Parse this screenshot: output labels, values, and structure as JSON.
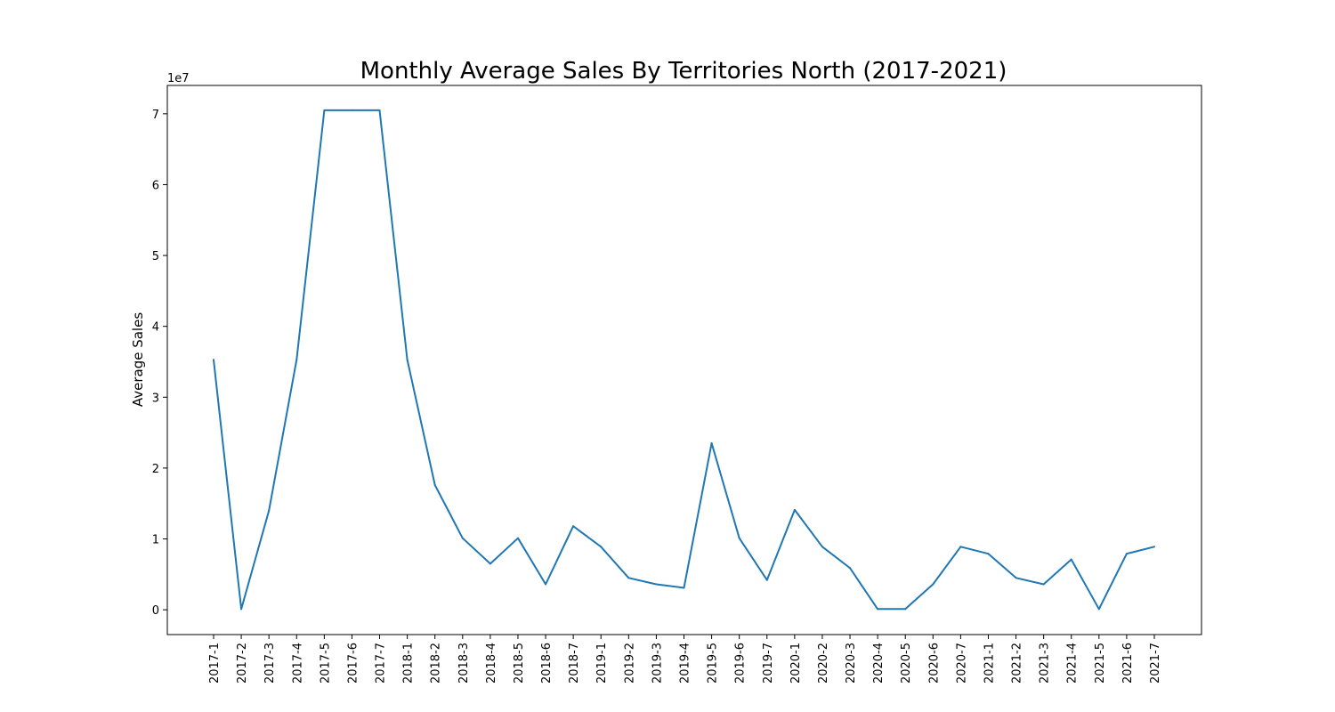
{
  "chart_data": {
    "type": "line",
    "title": "Monthly Average Sales By Territories North (2017-2021)",
    "xlabel": "",
    "ylabel": "Average Sales",
    "y_offset_label": "1e7",
    "y_scale": 10000000,
    "ylim": [
      -3500000,
      74000000
    ],
    "yticks": [
      0,
      10000000,
      20000000,
      30000000,
      40000000,
      50000000,
      60000000,
      70000000
    ],
    "ytick_labels": [
      "0",
      "1",
      "2",
      "3",
      "4",
      "5",
      "6",
      "7"
    ],
    "grid": false,
    "line_color": "#1f77b4",
    "categories": [
      "2017-1",
      "2017-2",
      "2017-3",
      "2017-4",
      "2017-5",
      "2017-6",
      "2017-7",
      "2018-1",
      "2018-2",
      "2018-3",
      "2018-4",
      "2018-5",
      "2018-6",
      "2018-7",
      "2019-1",
      "2019-2",
      "2019-3",
      "2019-4",
      "2019-5",
      "2019-6",
      "2019-7",
      "2020-1",
      "2020-2",
      "2020-3",
      "2020-4",
      "2020-5",
      "2020-6",
      "2020-7",
      "2021-1",
      "2021-2",
      "2021-3",
      "2021-4",
      "2021-5",
      "2021-6",
      "2021-7"
    ],
    "values": [
      35300000,
      100000,
      14000000,
      35300000,
      70500000,
      70500000,
      70500000,
      35300000,
      17600000,
      10100000,
      6500000,
      10100000,
      3600000,
      11800000,
      8900000,
      4500000,
      3600000,
      3100000,
      23500000,
      10100000,
      4200000,
      14100000,
      8900000,
      5900000,
      100000,
      100000,
      3600000,
      8900000,
      7900000,
      4500000,
      3600000,
      7100000,
      100000,
      7900000,
      8900000
    ]
  }
}
